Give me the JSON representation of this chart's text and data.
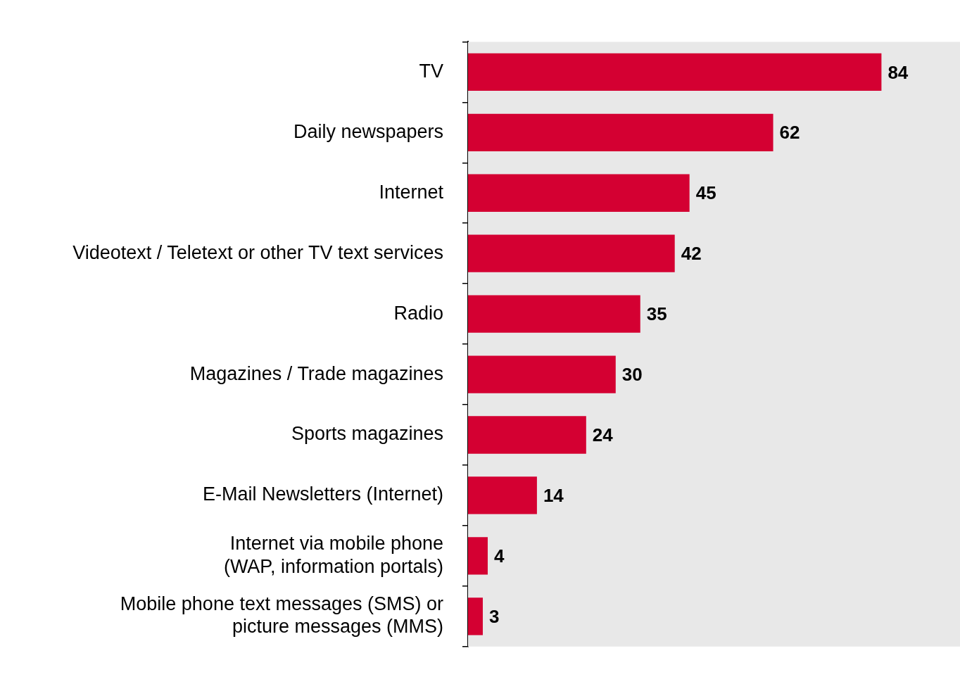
{
  "chart_data": {
    "type": "bar",
    "orientation": "horizontal",
    "categories": [
      "TV",
      "Daily newspapers",
      "Internet",
      "Videotext / Teletext or other TV text services",
      "Radio",
      "Magazines / Trade magazines",
      "Sports magazines",
      "E-Mail Newsletters (Internet)",
      "Internet via mobile phone\n(WAP, information portals)",
      "Mobile phone text messages (SMS) or\npicture messages (MMS)"
    ],
    "values": [
      84,
      62,
      45,
      42,
      35,
      30,
      24,
      14,
      4,
      3
    ],
    "color": "#d40032",
    "data_labels": true
  }
}
